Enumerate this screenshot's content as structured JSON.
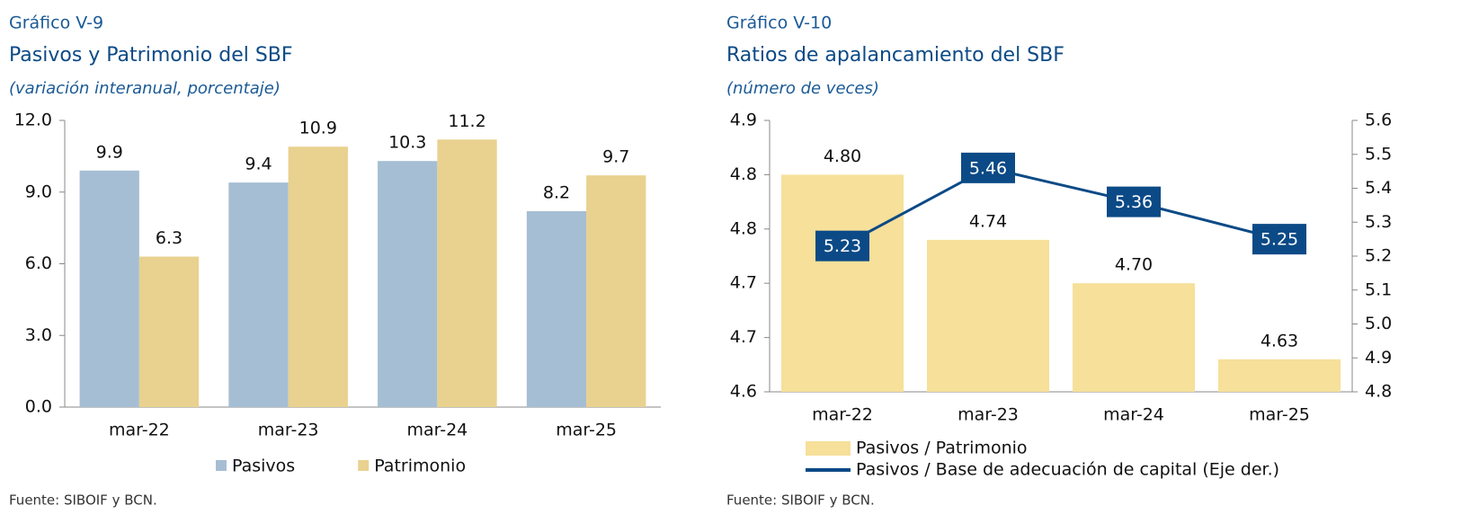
{
  "chart_data": [
    {
      "type": "bar",
      "label": "Gráfico V-9",
      "title": "Pasivos y Patrimonio del SBF",
      "subtitle": "(variación interanual, porcentaje)",
      "source": "Fuente: SIBOIF y BCN.",
      "categories": [
        "mar-22",
        "mar-23",
        "mar-24",
        "mar-25"
      ],
      "series": [
        {
          "name": "Pasivos",
          "color": "#a6bed3",
          "values": [
            9.9,
            9.4,
            10.3,
            8.2
          ]
        },
        {
          "name": "Patrimonio",
          "color": "#e9d18f",
          "values": [
            6.3,
            10.9,
            11.2,
            9.7
          ]
        }
      ],
      "ylim": [
        0,
        12
      ],
      "yticks": [
        {
          "value": 0,
          "label": "0.0"
        },
        {
          "value": 3,
          "label": "3.0"
        },
        {
          "value": 6,
          "label": "6.0"
        },
        {
          "value": 9,
          "label": "9.0"
        },
        {
          "value": 12,
          "label": "12.0"
        }
      ],
      "grid": false,
      "legend": "bottom"
    },
    {
      "type": "combo",
      "label": "Gráfico V-10",
      "title": "Ratios de apalancamiento del SBF",
      "subtitle": "(número de veces)",
      "source": "Fuente: SIBOIF y BCN.",
      "categories": [
        "mar-22",
        "mar-23",
        "mar-24",
        "mar-25"
      ],
      "series": [
        {
          "name": "Pasivos / Patrimonio",
          "type": "bar",
          "color": "#f6e09a",
          "values": [
            4.8,
            4.74,
            4.7,
            4.63
          ],
          "value_labels": [
            "4.80",
            "4.74",
            "4.70",
            "4.63"
          ]
        },
        {
          "name": "Pasivos / Base de adecuación de capital  (Eje der.)",
          "type": "line",
          "axis": "y2",
          "color": "#0b4a86",
          "values": [
            5.23,
            5.46,
            5.36,
            5.25
          ]
        }
      ],
      "ylim": [
        4.6,
        4.85
      ],
      "yticks": [
        4.6,
        {
          "value": 4.65,
          "label": "4.7"
        },
        4.7,
        {
          "value": 4.75,
          "label": "4.8"
        },
        4.8,
        {
          "value": 4.85,
          "label": "4.9"
        }
      ],
      "y2lim": [
        4.8,
        5.6
      ],
      "y2ticks": [
        4.8,
        4.9,
        {
          "value": 5,
          "label": "5.0"
        },
        5.1,
        5.2,
        5.3,
        5.4,
        5.5,
        5.6
      ],
      "grid": false,
      "legend": "bottom"
    }
  ]
}
